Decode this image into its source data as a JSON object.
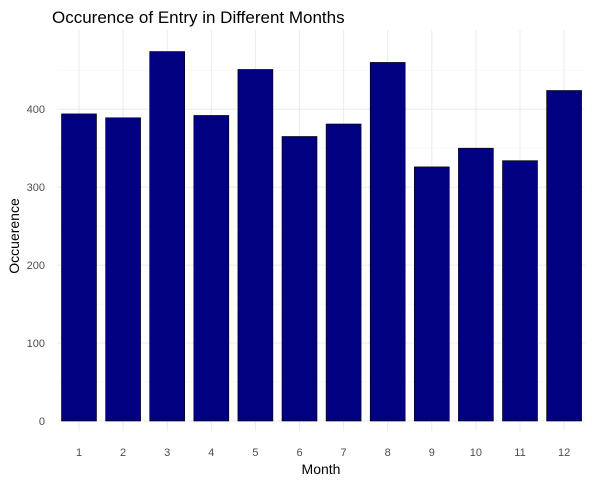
{
  "chart_data": {
    "type": "bar",
    "title": "Occurence of Entry in Different Months",
    "xlabel": "Month",
    "ylabel": "Occuerence",
    "categories": [
      "1",
      "2",
      "3",
      "4",
      "5",
      "6",
      "7",
      "8",
      "9",
      "10",
      "11",
      "12"
    ],
    "values": [
      394,
      389,
      474,
      392,
      451,
      365,
      381,
      460,
      326,
      350,
      334,
      424
    ],
    "ylim": [
      0,
      500
    ],
    "yticks": [
      0,
      100,
      200,
      300,
      400
    ],
    "grid": true,
    "bar_color": "#000080",
    "legend": "none"
  }
}
